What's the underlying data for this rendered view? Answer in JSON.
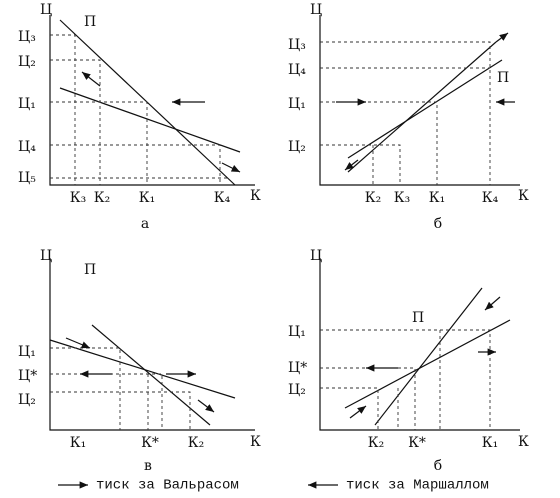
{
  "panels": [
    {
      "caption": "а",
      "y_axis": "Ц",
      "x_axis": "К",
      "curve_label": "П",
      "y_labels": [
        "Ц₃",
        "Ц₂",
        "Ц₁",
        "Ц₄",
        "Ц₅"
      ],
      "x_labels": [
        "К₃",
        "К₂",
        "К₁",
        "К₄"
      ]
    },
    {
      "caption": "б",
      "y_axis": "Ц",
      "x_axis": "К",
      "curve_label": "П",
      "y_labels": [
        "Ц₃",
        "Ц₄",
        "Ц₁",
        "Ц₂"
      ],
      "x_labels": [
        "К₂",
        "К₃",
        "К₁",
        "К₄"
      ]
    },
    {
      "caption": "в",
      "y_axis": "Ц",
      "x_axis": "К",
      "curve_label": "П",
      "y_labels": [
        "Ц₁",
        "Ц*",
        "Ц₂"
      ],
      "x_labels": [
        "К₁",
        "К*",
        "К₂"
      ]
    },
    {
      "caption": "б",
      "y_axis": "Ц",
      "x_axis": "К",
      "curve_label": "П",
      "y_labels": [
        "Ц₁",
        "Ц*",
        "Ц₂"
      ],
      "x_labels": [
        "К₂",
        "К*",
        "К₁"
      ]
    }
  ],
  "legend": [
    "тиск за Вальрасом",
    "тиск за Маршаллом"
  ]
}
